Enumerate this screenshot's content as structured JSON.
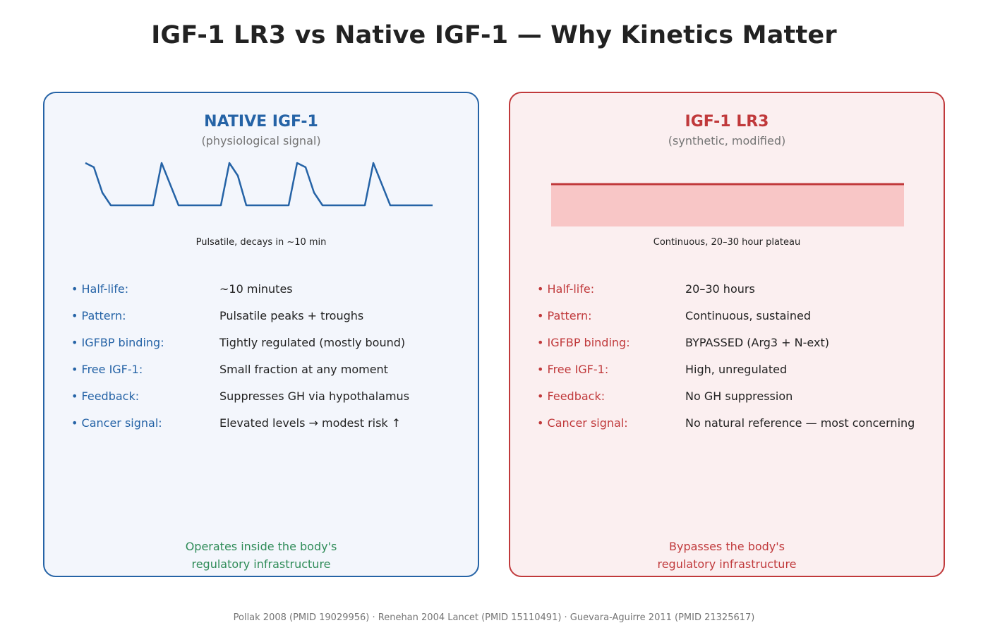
{
  "title": "IGF-1 LR3 vs Native IGF-1 — Why Kinetics Matter",
  "colors": {
    "native": "#2563a6",
    "lr3": "#c0393b",
    "positive_note": "#2e8b57",
    "lr3_fill": "#f8c6c6"
  },
  "native": {
    "title": "NATIVE IGF-1",
    "subtitle": "(physiological signal)",
    "caption": "Pulsatile, decays in ~10 min",
    "properties": [
      {
        "label": "• Half-life:",
        "value": "~10 minutes"
      },
      {
        "label": "• Pattern:",
        "value": "Pulsatile peaks + troughs"
      },
      {
        "label": "• IGFBP binding:",
        "value": "Tightly regulated (mostly bound)"
      },
      {
        "label": "• Free IGF-1:",
        "value": "Small fraction at any moment"
      },
      {
        "label": "• Feedback:",
        "value": "Suppresses GH via hypothalamus"
      },
      {
        "label": "• Cancer signal:",
        "value": "Elevated levels → modest risk ↑"
      }
    ],
    "footer_line1": "Operates inside the body's",
    "footer_line2": "regulatory infrastructure"
  },
  "lr3": {
    "title": "IGF-1 LR3",
    "subtitle": "(synthetic, modified)",
    "caption": "Continuous, 20–30 hour plateau",
    "properties": [
      {
        "label": "• Half-life:",
        "value": "20–30 hours"
      },
      {
        "label": "• Pattern:",
        "value": "Continuous, sustained"
      },
      {
        "label": "• IGFBP binding:",
        "value": "BYPASSED (Arg3 + N-ext)"
      },
      {
        "label": "• Free IGF-1:",
        "value": "High, unregulated"
      },
      {
        "label": "• Feedback:",
        "value": "No GH suppression"
      },
      {
        "label": "• Cancer signal:",
        "value": "No natural reference — most concerning"
      }
    ],
    "footer_line1": "Bypasses the body's",
    "footer_line2": "regulatory infrastructure"
  },
  "citation": "Pollak 2008 (PMID 19029956) · Renehan 2004 Lancet (PMID 15110491) · Guevara-Aguirre 2011 (PMID 21325617)"
}
